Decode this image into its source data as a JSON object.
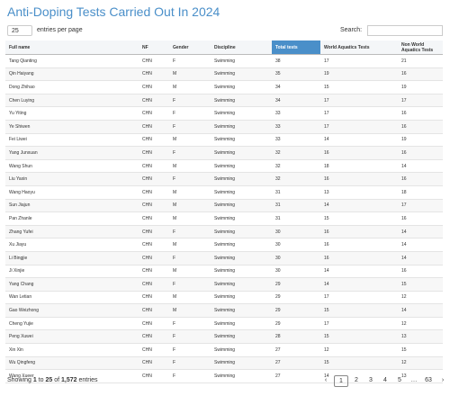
{
  "header": {
    "title": "Anti-Doping Tests Carried Out In 2024"
  },
  "controls": {
    "entries_value": "25",
    "entries_label": "entries per page",
    "search_label": "Search:"
  },
  "table": {
    "columns": [
      "Full name",
      "NF",
      "Gender",
      "Discipline",
      "Total tests",
      "World Aquatics Tests",
      "Non World Aquatics Tests"
    ],
    "rows": [
      [
        "Tang Qianting",
        "CHN",
        "F",
        "Swimming",
        "38",
        "17",
        "21"
      ],
      [
        "Qin Haiyang",
        "CHN",
        "M",
        "Swimming",
        "35",
        "19",
        "16"
      ],
      [
        "Dong Zhihao",
        "CHN",
        "M",
        "Swimming",
        "34",
        "15",
        "19"
      ],
      [
        "Chen Luying",
        "CHN",
        "F",
        "Swimming",
        "34",
        "17",
        "17"
      ],
      [
        "Yu Yiting",
        "CHN",
        "F",
        "Swimming",
        "33",
        "17",
        "16"
      ],
      [
        "Ye Shiwen",
        "CHN",
        "F",
        "Swimming",
        "33",
        "17",
        "16"
      ],
      [
        "Fei Liwei",
        "CHN",
        "M",
        "Swimming",
        "33",
        "14",
        "19"
      ],
      [
        "Yang Junxuan",
        "CHN",
        "F",
        "Swimming",
        "32",
        "16",
        "16"
      ],
      [
        "Wang Shun",
        "CHN",
        "M",
        "Swimming",
        "32",
        "18",
        "14"
      ],
      [
        "Liu Yaxin",
        "CHN",
        "F",
        "Swimming",
        "32",
        "16",
        "16"
      ],
      [
        "Wang Haoyu",
        "CHN",
        "M",
        "Swimming",
        "31",
        "13",
        "18"
      ],
      [
        "Sun Jiajun",
        "CHN",
        "M",
        "Swimming",
        "31",
        "14",
        "17"
      ],
      [
        "Pan Zhanle",
        "CHN",
        "M",
        "Swimming",
        "31",
        "15",
        "16"
      ],
      [
        "Zhang Yufei",
        "CHN",
        "F",
        "Swimming",
        "30",
        "16",
        "14"
      ],
      [
        "Xu Jiayu",
        "CHN",
        "M",
        "Swimming",
        "30",
        "16",
        "14"
      ],
      [
        "Li Bingjie",
        "CHN",
        "F",
        "Swimming",
        "30",
        "16",
        "14"
      ],
      [
        "Ji Xinjie",
        "CHN",
        "M",
        "Swimming",
        "30",
        "14",
        "16"
      ],
      [
        "Yang Chang",
        "CHN",
        "F",
        "Swimming",
        "29",
        "14",
        "15"
      ],
      [
        "Wan Letian",
        "CHN",
        "M",
        "Swimming",
        "29",
        "17",
        "12"
      ],
      [
        "Gao Weizhong",
        "CHN",
        "M",
        "Swimming",
        "29",
        "15",
        "14"
      ],
      [
        "Cheng Yujie",
        "CHN",
        "F",
        "Swimming",
        "29",
        "17",
        "12"
      ],
      [
        "Peng Xuwei",
        "CHN",
        "F",
        "Swimming",
        "28",
        "15",
        "13"
      ],
      [
        "Xin Xin",
        "CHN",
        "F",
        "Swimming",
        "27",
        "12",
        "15"
      ],
      [
        "Wu Qingfeng",
        "CHN",
        "F",
        "Swimming",
        "27",
        "15",
        "12"
      ],
      [
        "Wang Xueer",
        "CHN",
        "F",
        "Swimming",
        "27",
        "14",
        "13"
      ]
    ]
  },
  "footer": {
    "info": [
      "Showing",
      "1",
      "to",
      "25",
      "of",
      "1,572",
      "entries"
    ],
    "pagination": [
      "‹",
      "1",
      "2",
      "3",
      "4",
      "5",
      "…",
      "63",
      "›"
    ]
  }
}
